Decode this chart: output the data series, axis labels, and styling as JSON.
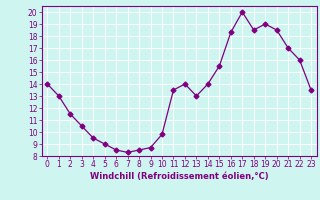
{
  "x": [
    0,
    1,
    2,
    3,
    4,
    5,
    6,
    7,
    8,
    9,
    10,
    11,
    12,
    13,
    14,
    15,
    16,
    17,
    18,
    19,
    20,
    21,
    22,
    23
  ],
  "y": [
    14,
    13,
    11.5,
    10.5,
    9.5,
    9,
    8.5,
    8.3,
    8.5,
    8.7,
    9.8,
    13.5,
    14,
    13,
    14,
    15.5,
    18.3,
    20,
    18.5,
    19,
    18.5,
    17,
    16,
    13.5
  ],
  "line_color": "#800080",
  "marker": "D",
  "marker_size": 2.5,
  "bg_color": "#cef5f0",
  "grid_color": "#ffffff",
  "xlabel": "Windchill (Refroidissement éolien,°C)",
  "xlabel_color": "#800080",
  "tick_color": "#800080",
  "xlim": [
    -0.5,
    23.5
  ],
  "ylim": [
    8,
    20.5
  ],
  "yticks": [
    8,
    9,
    10,
    11,
    12,
    13,
    14,
    15,
    16,
    17,
    18,
    19,
    20
  ],
  "xticks": [
    0,
    1,
    2,
    3,
    4,
    5,
    6,
    7,
    8,
    9,
    10,
    11,
    12,
    13,
    14,
    15,
    16,
    17,
    18,
    19,
    20,
    21,
    22,
    23
  ],
  "spine_color": "#800080",
  "fig_bg": "#cef5f0",
  "tick_fontsize": 5.5,
  "xlabel_fontsize": 6.0
}
